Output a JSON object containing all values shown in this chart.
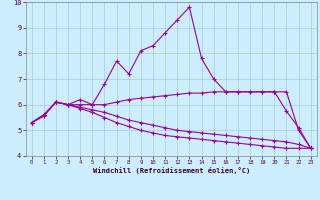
{
  "xlabel": "Windchill (Refroidissement éolien,°C)",
  "x": [
    0,
    1,
    2,
    3,
    4,
    5,
    6,
    7,
    8,
    9,
    10,
    11,
    12,
    13,
    14,
    15,
    16,
    17,
    18,
    19,
    20,
    21,
    22,
    23
  ],
  "line1": [
    5.3,
    5.6,
    6.1,
    6.0,
    6.2,
    6.0,
    6.8,
    7.7,
    7.2,
    8.1,
    8.3,
    8.8,
    9.3,
    9.8,
    7.8,
    7.0,
    6.5,
    6.5,
    6.5,
    6.5,
    6.5,
    5.75,
    5.1,
    4.3
  ],
  "line2": [
    5.3,
    5.6,
    6.1,
    6.0,
    6.0,
    6.0,
    6.0,
    6.1,
    6.2,
    6.25,
    6.3,
    6.35,
    6.4,
    6.45,
    6.45,
    6.5,
    6.5,
    6.5,
    6.5,
    6.5,
    6.5,
    6.5,
    5.0,
    4.3
  ],
  "line3": [
    5.3,
    5.6,
    6.1,
    6.0,
    5.9,
    5.8,
    5.7,
    5.55,
    5.4,
    5.3,
    5.2,
    5.1,
    5.0,
    4.95,
    4.9,
    4.85,
    4.8,
    4.75,
    4.7,
    4.65,
    4.6,
    4.55,
    4.45,
    4.3
  ],
  "line4": [
    5.3,
    5.55,
    6.1,
    6.0,
    5.85,
    5.7,
    5.5,
    5.3,
    5.15,
    5.0,
    4.9,
    4.8,
    4.75,
    4.7,
    4.65,
    4.6,
    4.55,
    4.5,
    4.45,
    4.4,
    4.35,
    4.3,
    4.3,
    4.3
  ],
  "line_color": "#990099",
  "bg_color": "#cceeff",
  "grid_color": "#aacccc",
  "ylim": [
    4,
    10
  ],
  "xlim": [
    -0.5,
    23.5
  ],
  "yticks": [
    4,
    5,
    6,
    7,
    8,
    9,
    10
  ],
  "xticks": [
    0,
    1,
    2,
    3,
    4,
    5,
    6,
    7,
    8,
    9,
    10,
    11,
    12,
    13,
    14,
    15,
    16,
    17,
    18,
    19,
    20,
    21,
    22,
    23
  ]
}
